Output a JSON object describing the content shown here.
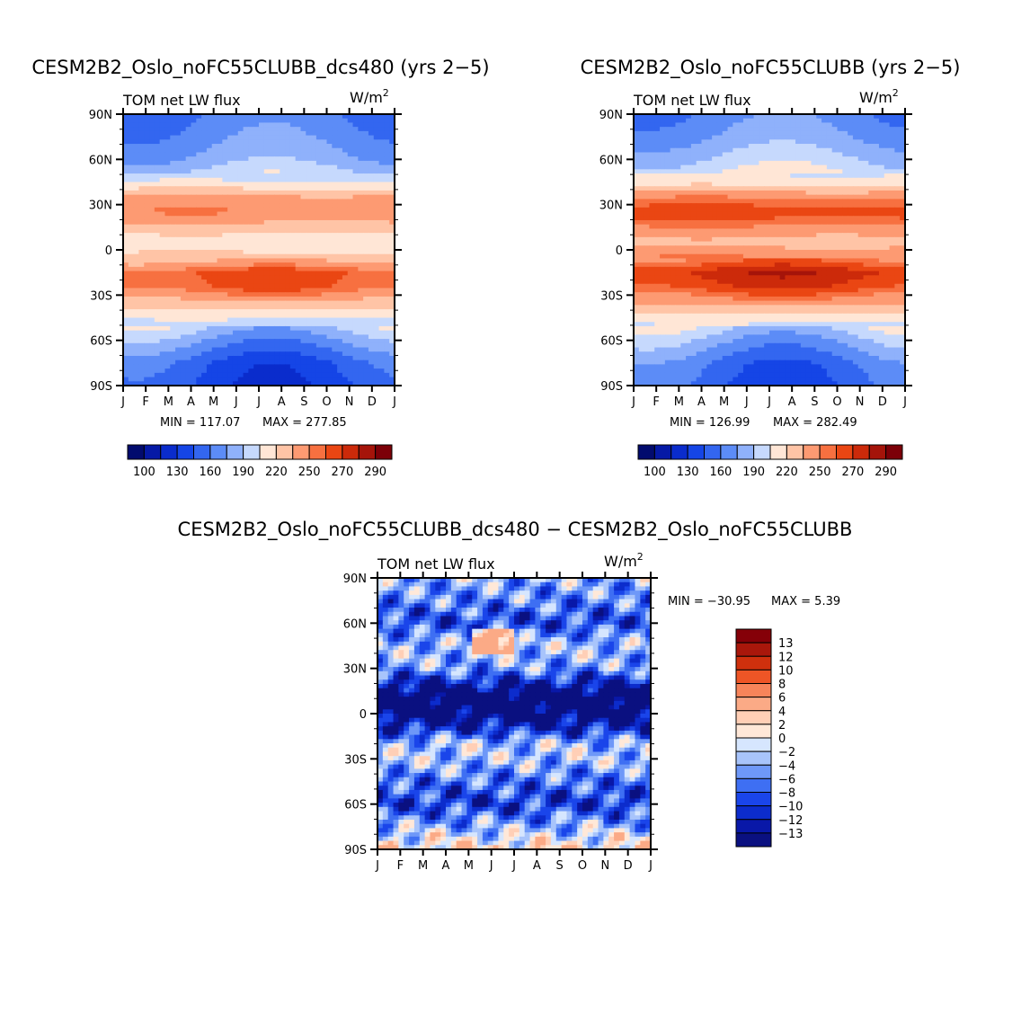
{
  "chart_data": [
    {
      "type": "heatmap",
      "title": "CESM2B2_Oslo_noFC55CLUBB_dcs480 (yrs 2−5)",
      "left_label": "TOM net LW flux",
      "units_base": "W/m",
      "units_exp": "2",
      "xticks": [
        "J",
        "F",
        "M",
        "A",
        "M",
        "J",
        "J",
        "A",
        "S",
        "O",
        "N",
        "D",
        "J"
      ],
      "yticks": [
        "90N",
        "60N",
        "30N",
        "0",
        "30S",
        "60S",
        "90S"
      ],
      "lat_range": [
        -90,
        90
      ],
      "min_label": "MIN = 117.07",
      "max_label": "MAX = 277.85",
      "min_value": 117.07,
      "max_value": 277.85,
      "colorbar_labels": [
        "100",
        "130",
        "160",
        "190",
        "220",
        "250",
        "270",
        "290"
      ],
      "profile": {
        "lat": [
          90,
          75,
          60,
          45,
          35,
          25,
          15,
          5,
          -5,
          -15,
          -25,
          -35,
          -45,
          -60,
          -75,
          -90
        ],
        "value": [
          160,
          168,
          180,
          205,
          238,
          250,
          228,
          208,
          225,
          262,
          258,
          232,
          206,
          175,
          148,
          140
        ]
      }
    },
    {
      "type": "heatmap",
      "title": "CESM2B2_Oslo_noFC55CLUBB (yrs 2−5)",
      "left_label": "TOM net LW flux",
      "units_base": "W/m",
      "units_exp": "2",
      "xticks": [
        "J",
        "F",
        "M",
        "A",
        "M",
        "J",
        "J",
        "A",
        "S",
        "O",
        "N",
        "D",
        "J"
      ],
      "yticks": [
        "90N",
        "60N",
        "30N",
        "0",
        "30S",
        "60S",
        "90S"
      ],
      "lat_range": [
        -90,
        90
      ],
      "min_label": "MIN = 126.99",
      "max_label": "MAX = 282.49",
      "min_value": 126.99,
      "max_value": 282.49,
      "colorbar_labels": [
        "100",
        "130",
        "160",
        "190",
        "220",
        "250",
        "270",
        "290"
      ],
      "profile": {
        "lat": [
          90,
          75,
          60,
          45,
          35,
          25,
          15,
          5,
          -5,
          -15,
          -25,
          -35,
          -45,
          -60,
          -75,
          -90
        ],
        "value": [
          165,
          175,
          192,
          212,
          248,
          268,
          248,
          228,
          250,
          275,
          266,
          240,
          212,
          182,
          158,
          150
        ]
      }
    },
    {
      "type": "heatmap",
      "title": "CESM2B2_Oslo_noFC55CLUBB_dcs480 − CESM2B2_Oslo_noFC55CLUBB",
      "left_label": "TOM net LW flux",
      "units_base": "W/m",
      "units_exp": "2",
      "xticks": [
        "J",
        "F",
        "M",
        "A",
        "M",
        "J",
        "J",
        "A",
        "S",
        "O",
        "N",
        "D",
        "J"
      ],
      "yticks": [
        "90N",
        "60N",
        "30N",
        "0",
        "30S",
        "60S",
        "90S"
      ],
      "lat_range": [
        -90,
        90
      ],
      "min_label": "MIN = −30.95",
      "max_label": "MAX =    5.39",
      "min_value": -30.95,
      "max_value": 5.39,
      "colorbar_labels": [
        "13",
        "12",
        "10",
        "8",
        "6",
        "4",
        "2",
        "0",
        "−2",
        "−4",
        "−6",
        "−8",
        "−10",
        "−12",
        "−13"
      ],
      "profile": {
        "lat": [
          90,
          75,
          60,
          45,
          30,
          20,
          10,
          0,
          -10,
          -20,
          -30,
          -45,
          -60,
          -75,
          -90
        ],
        "value": [
          -4,
          -6,
          -9,
          -3,
          -5,
          -12,
          -18,
          -16,
          -11,
          -3,
          -3,
          -7,
          -10,
          -4,
          2
        ]
      }
    }
  ]
}
